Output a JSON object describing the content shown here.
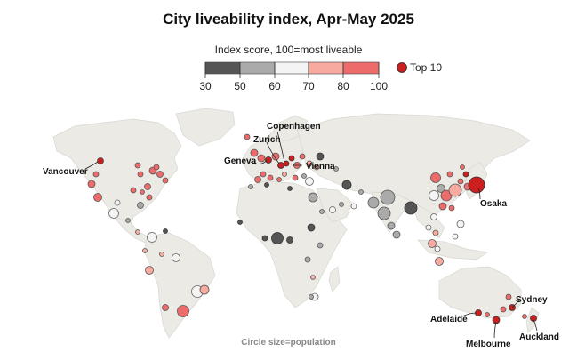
{
  "title": "City liveability index, Apr-May 2025",
  "legend": {
    "title": "Index score, 100=most liveable",
    "ticks": [
      "30",
      "50",
      "60",
      "70",
      "80",
      "100"
    ],
    "colors": [
      "#555555",
      "#aaaaaa",
      "#f4f4f4",
      "#f7aaa0",
      "#ee6b6b"
    ],
    "top10_label": "Top 10",
    "top10_color": "#cc1f1f"
  },
  "size_note": "Circle size=population",
  "labels": [
    "Vancouver",
    "Copenhagen",
    "Zurich",
    "Geneva",
    "Vienna",
    "Osaka",
    "Sydney",
    "Adelaide",
    "Melbourne",
    "Auckland"
  ],
  "land_color": "#eceae5",
  "ocean_color": "#ffffff"
}
